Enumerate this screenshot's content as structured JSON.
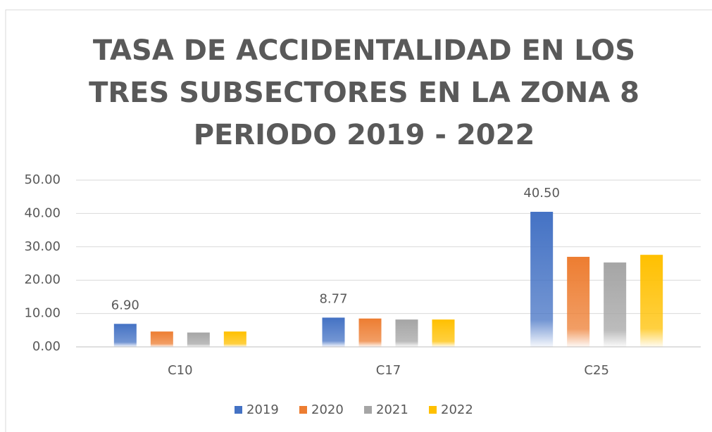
{
  "chart_data": {
    "type": "bar",
    "title": "TASA DE ACCIDENTALIDAD EN LOS TRES SUBSECTORES EN LA ZONA 8 PERIODO 2019 - 2022",
    "categories": [
      "C10",
      "C17",
      "C25"
    ],
    "series": [
      {
        "name": "2019",
        "color": "#4472c4",
        "values": [
          6.9,
          8.77,
          40.5
        ],
        "value_labels": [
          "6.90",
          "8.77",
          "40.50"
        ]
      },
      {
        "name": "2020",
        "color": "#ed7d31",
        "values": [
          4.6,
          8.5,
          27.0
        ]
      },
      {
        "name": "2021",
        "color": "#a5a5a5",
        "values": [
          4.3,
          8.2,
          25.3
        ]
      },
      {
        "name": "2022",
        "color": "#ffc000",
        "values": [
          4.6,
          8.2,
          27.6
        ]
      }
    ],
    "ylim": [
      0,
      50
    ],
    "yticks": [
      {
        "value": 0,
        "label": "0.00"
      },
      {
        "value": 10,
        "label": "10.00"
      },
      {
        "value": 20,
        "label": "20.00"
      },
      {
        "value": 30,
        "label": "30.00"
      },
      {
        "value": 40,
        "label": "40.00"
      },
      {
        "value": 50,
        "label": "50.00"
      }
    ],
    "grid": true,
    "legend": "bottom"
  }
}
